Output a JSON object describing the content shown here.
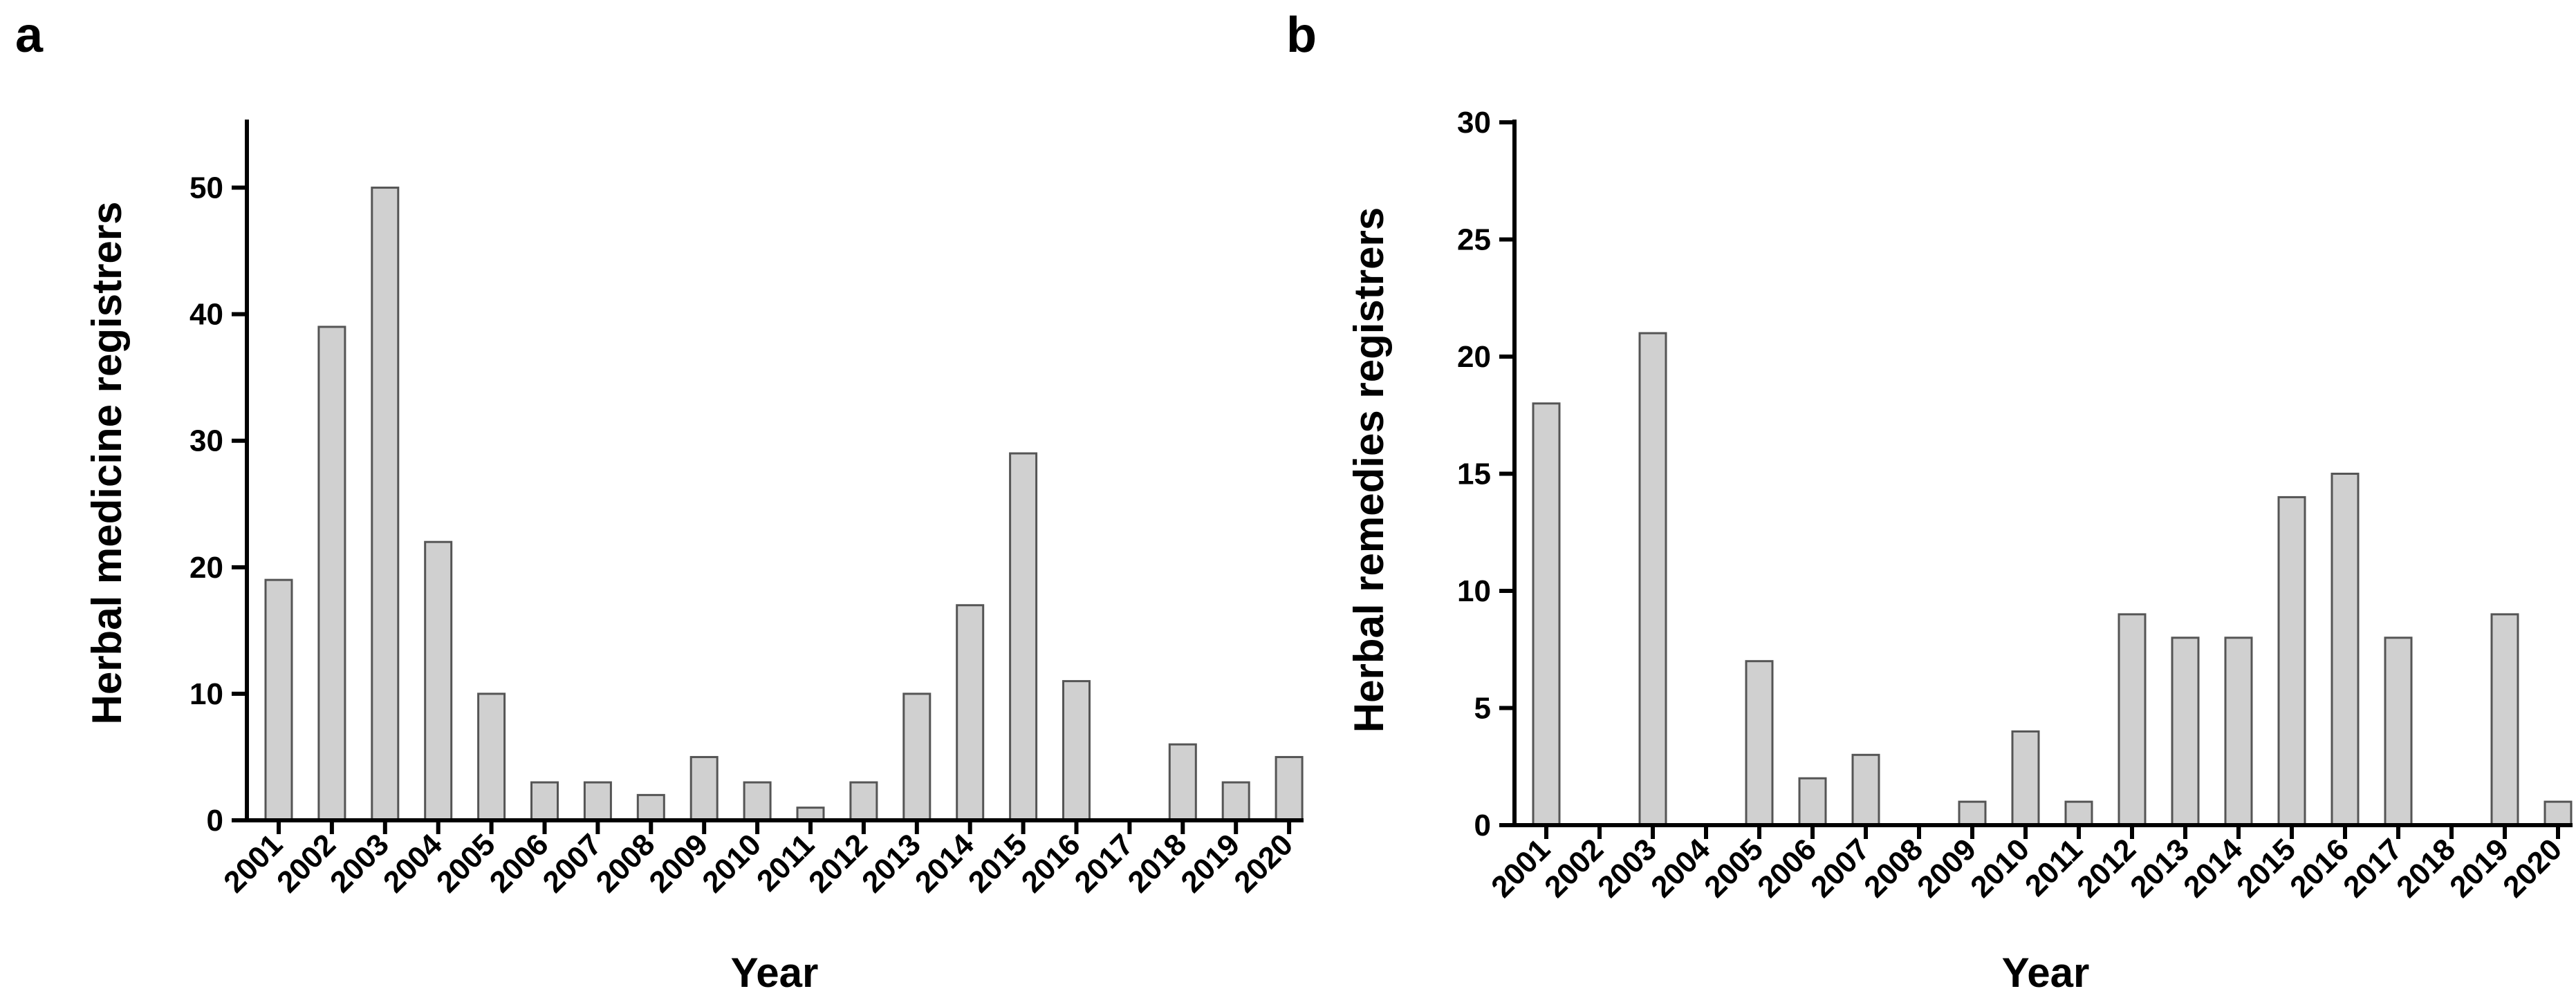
{
  "chart_data": [
    {
      "type": "bar",
      "panel_label": "a",
      "title": "",
      "xlabel": "Year",
      "ylabel": "Herbal medicine registrers",
      "categories": [
        "2001",
        "2002",
        "2003",
        "2004",
        "2005",
        "2006",
        "2007",
        "2008",
        "2009",
        "2010",
        "2011",
        "2012",
        "2013",
        "2014",
        "2015",
        "2016",
        "2017",
        "2018",
        "2019",
        "2020"
      ],
      "values": [
        19,
        39,
        50,
        22,
        10,
        3,
        3,
        2,
        5,
        3,
        1,
        3,
        10,
        17,
        29,
        11,
        0,
        6,
        3,
        5
      ],
      "ylim": [
        0,
        55
      ],
      "yticks": [
        0,
        10,
        20,
        30,
        40,
        50
      ],
      "ytick_labels": [
        "0",
        "10",
        "20",
        "30",
        "40",
        "50"
      ],
      "grid": false,
      "bar_color": "#d0d0d0"
    },
    {
      "type": "bar",
      "panel_label": "b",
      "title": "",
      "xlabel": "Year",
      "ylabel": "Herbal remedies registrers",
      "categories": [
        "2001",
        "2002",
        "2003",
        "2004",
        "2005",
        "2006",
        "2007",
        "2008",
        "2009",
        "2010",
        "2011",
        "2012",
        "2013",
        "2014",
        "2015",
        "2016",
        "2017",
        "2018",
        "2019",
        "2020"
      ],
      "values": [
        18,
        0,
        21,
        0,
        7,
        2,
        3,
        0,
        1,
        4,
        1,
        9,
        8,
        8,
        14,
        15,
        8,
        0,
        9,
        1
      ],
      "ylim": [
        0,
        30
      ],
      "yticks": [
        0,
        5,
        10,
        15,
        20,
        25,
        30
      ],
      "ytick_labels": [
        "0",
        "5",
        "10",
        "15",
        "20",
        "25",
        "30"
      ],
      "grid": false,
      "bar_color": "#d0d0d0"
    }
  ]
}
